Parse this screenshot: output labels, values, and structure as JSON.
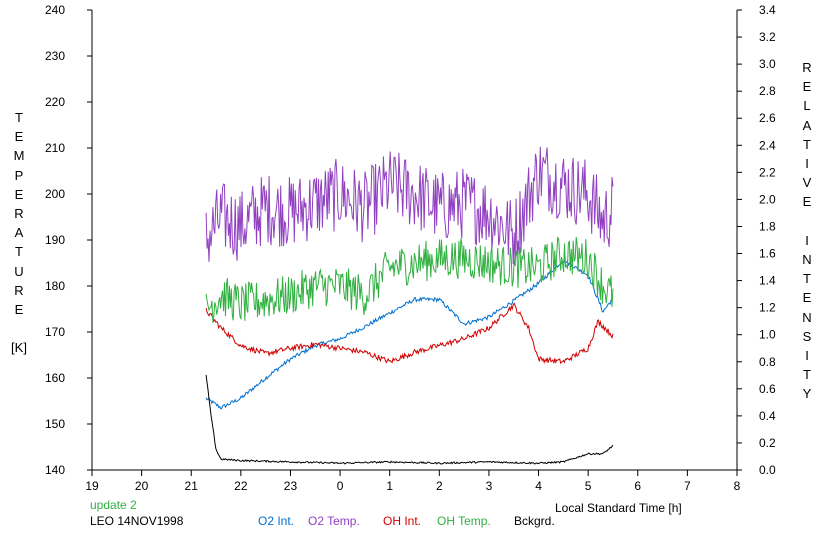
{
  "chart_data": {
    "type": "line",
    "ylabel_left": "TEMPERATURE [K]",
    "ylabel_right": "RELATIVE INTENSITY",
    "xlabel": "Local Standard Time [h]",
    "xlim": [
      19,
      8
    ],
    "ylim_left": [
      140,
      240
    ],
    "ylim_right": [
      0.0,
      3.4
    ],
    "x_ticks": [
      "19",
      "20",
      "21",
      "22",
      "23",
      "0",
      "1",
      "2",
      "3",
      "4",
      "5",
      "6",
      "7",
      "8"
    ],
    "y_ticks_left": [
      "140",
      "150",
      "160",
      "170",
      "180",
      "190",
      "200",
      "210",
      "220",
      "230",
      "240"
    ],
    "y_ticks_right": [
      "0.0",
      "0.2",
      "0.4",
      "0.6",
      "0.8",
      "1.0",
      "1.2",
      "1.4",
      "1.6",
      "1.8",
      "2.0",
      "2.2",
      "2.4",
      "2.6",
      "2.8",
      "3.0",
      "3.2",
      "3.4"
    ],
    "grid": false,
    "annotations": {
      "update": "update 2",
      "station": "LEO 14NOV1998"
    },
    "series": [
      {
        "name": "O2 Int.",
        "color": "#0070d0",
        "axis": "right",
        "x": [
          21.3,
          21.6,
          22.0,
          22.5,
          23.0,
          23.5,
          24.0,
          24.5,
          25.0,
          25.5,
          26.0,
          26.5,
          27.0,
          27.5,
          28.0,
          28.5,
          29.0,
          29.3,
          29.5
        ],
        "y": [
          0.53,
          0.46,
          0.53,
          0.68,
          0.82,
          0.92,
          0.97,
          1.06,
          1.16,
          1.26,
          1.26,
          1.08,
          1.13,
          1.25,
          1.38,
          1.55,
          1.44,
          1.17,
          1.27
        ]
      },
      {
        "name": "O2 Temp.",
        "color": "#9040c0",
        "axis": "left",
        "x": [
          21.3,
          21.6,
          22.0,
          22.5,
          23.0,
          23.5,
          24.0,
          24.5,
          25.0,
          25.5,
          26.0,
          26.5,
          27.0,
          27.5,
          28.0,
          28.5,
          29.0,
          29.3,
          29.5
        ],
        "y": [
          190,
          195,
          193,
          197,
          196,
          198,
          200,
          197,
          202,
          200,
          197,
          198,
          196,
          191,
          205,
          202,
          200,
          194,
          197
        ]
      },
      {
        "name": "OH Int.",
        "color": "#d00000",
        "axis": "right",
        "x": [
          21.3,
          21.6,
          22.0,
          22.5,
          23.0,
          23.5,
          24.0,
          24.5,
          25.0,
          25.5,
          26.0,
          26.5,
          27.0,
          27.5,
          27.8,
          28.0,
          28.5,
          29.0,
          29.2,
          29.5
        ],
        "y": [
          1.18,
          1.05,
          0.92,
          0.86,
          0.9,
          0.93,
          0.9,
          0.87,
          0.8,
          0.87,
          0.92,
          0.97,
          1.05,
          1.22,
          1.05,
          0.82,
          0.8,
          0.9,
          1.1,
          0.99
        ]
      },
      {
        "name": "OH Temp.",
        "color": "#30b040",
        "axis": "left",
        "x": [
          21.3,
          21.6,
          22.0,
          22.5,
          23.0,
          23.5,
          24.0,
          24.5,
          25.0,
          25.5,
          26.0,
          26.5,
          27.0,
          27.5,
          28.0,
          28.5,
          29.0,
          29.3,
          29.5
        ],
        "y": [
          175,
          178,
          176,
          177,
          178,
          180,
          180,
          178,
          184,
          185,
          186,
          186,
          185,
          184,
          184,
          187,
          186,
          180,
          178
        ]
      },
      {
        "name": "Bckgrd.",
        "color": "#000000",
        "axis": "right",
        "x": [
          21.3,
          21.4,
          21.5,
          21.6,
          22.0,
          23.0,
          24.0,
          25.0,
          26.0,
          27.0,
          28.0,
          28.5,
          29.0,
          29.3,
          29.5
        ],
        "y": [
          0.7,
          0.4,
          0.15,
          0.08,
          0.07,
          0.06,
          0.05,
          0.06,
          0.05,
          0.06,
          0.05,
          0.06,
          0.12,
          0.12,
          0.18
        ]
      }
    ]
  },
  "legend": {
    "update": "update 2",
    "station": "LEO 14NOV1998",
    "o2_int": "O2 Int.",
    "o2_temp": "O2 Temp.",
    "oh_int": "OH Int.",
    "oh_temp": "OH Temp.",
    "bckgrd": "Bckgrd."
  },
  "colors": {
    "o2_int": "#0070d0",
    "o2_temp": "#9040c0",
    "oh_int": "#d00000",
    "oh_temp": "#30b040",
    "bckgrd": "#000000",
    "update": "#30b040"
  }
}
